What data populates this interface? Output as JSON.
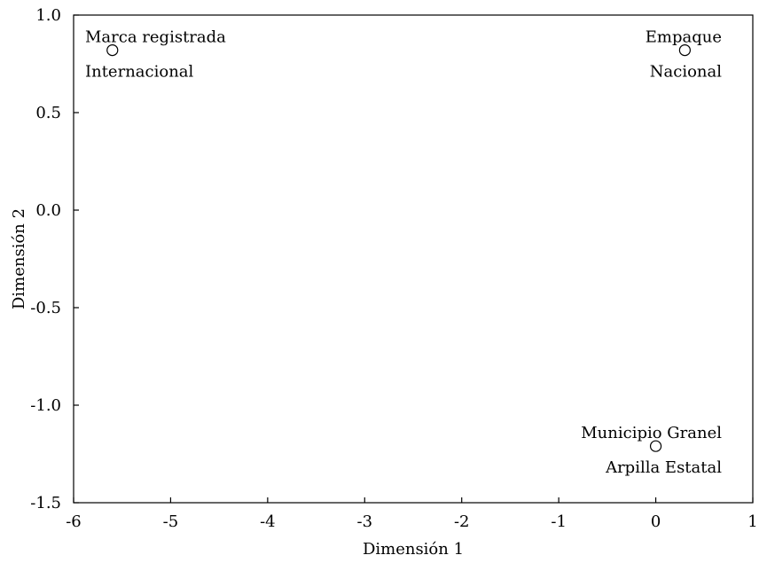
{
  "chart_data": {
    "type": "scatter",
    "xlabel": "Dimensión 1",
    "ylabel": "Dimensión 2",
    "xlim": [
      -6,
      1
    ],
    "ylim": [
      -1.5,
      1.0
    ],
    "x_ticks": [
      -6,
      -5,
      -4,
      -3,
      -2,
      -1,
      0,
      1
    ],
    "y_ticks": [
      1.0,
      0.5,
      0.0,
      -0.5,
      -1.0,
      -1.5
    ],
    "x_tick_labels": [
      "-6",
      "-5",
      "-4",
      "-3",
      "-2",
      "-1",
      "0",
      "1"
    ],
    "y_tick_labels": [
      "1.0",
      "0.5",
      "0.0",
      "-0.5",
      "-1.0",
      "-1.5"
    ],
    "grid": false,
    "legend": false,
    "points": [
      {
        "x": -5.6,
        "y": 0.82,
        "label_above": "Marca registrada",
        "label_below": "Internacional"
      },
      {
        "x": 0.3,
        "y": 0.82,
        "label_above": "Empaque",
        "label_below": "Nacional"
      },
      {
        "x": 0.0,
        "y": -1.21,
        "label_above": "Municipio Granel",
        "label_below": "Arpilla Estatal"
      }
    ]
  }
}
